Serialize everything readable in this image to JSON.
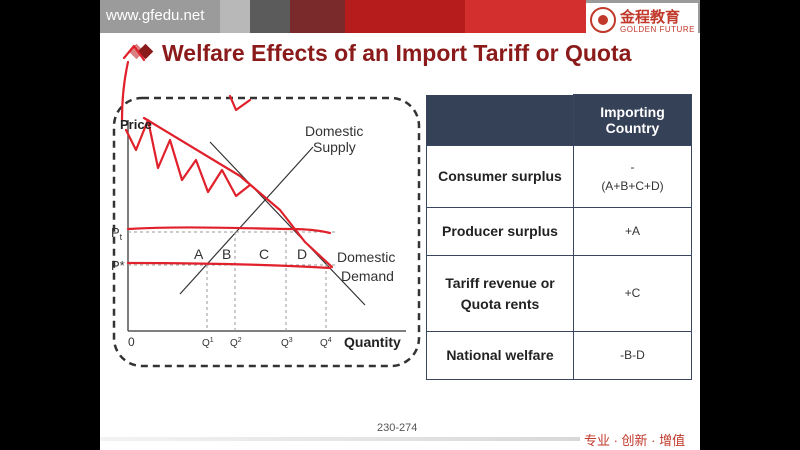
{
  "header": {
    "site_url": "www.gfedu.net",
    "logo_cn": "金程教育",
    "logo_en": "GOLDEN FUTURE",
    "title": "Welfare Effects of an Import Tariff or Quota"
  },
  "graph": {
    "price_label": "Price",
    "pt_label": "P",
    "pt_sub": "t",
    "pstar_label": "P*",
    "origin_label": "0",
    "quantity_label": "Quantity",
    "supply_label_1": "Domestic",
    "supply_label_2": "Supply",
    "demand_label_1": "Domestic",
    "demand_label_2": "Demand",
    "area_a": "A",
    "area_b": "B",
    "area_c": "C",
    "area_d": "D",
    "q1": "Q",
    "q1_sup": "1",
    "q2": "Q",
    "q2_sup": "2",
    "q3": "Q",
    "q3_sup": "3",
    "q4": "Q",
    "q4_sup": "4"
  },
  "table": {
    "header": "Importing Country",
    "rows": [
      {
        "label": "Consumer surplus",
        "value_line1": "-",
        "value_line2": "(A+B+C+D)"
      },
      {
        "label": "Producer surplus",
        "value_line1": "+A",
        "value_line2": ""
      },
      {
        "label": "Tariff revenue or Quota rents",
        "value_line1": "+C",
        "value_line2": ""
      },
      {
        "label": "National welfare",
        "value_line1": "-B-D",
        "value_line2": ""
      }
    ]
  },
  "footer": {
    "page_number": "230-274",
    "slogan": "专业 · 创新 · 增值"
  },
  "colors": {
    "brand_red": "#8b1a1a",
    "table_header": "#344157",
    "annotation_red": "#e0202a"
  }
}
